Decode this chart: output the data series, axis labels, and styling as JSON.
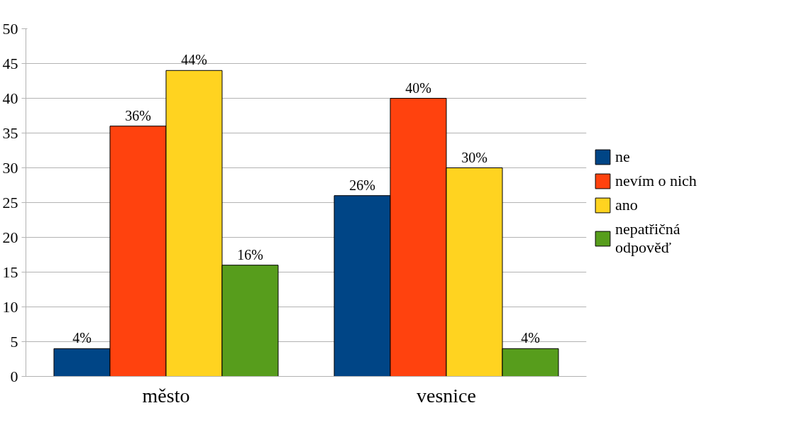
{
  "chart_data": {
    "type": "bar",
    "categories": [
      "město",
      "vesnice"
    ],
    "series": [
      {
        "name": "ne",
        "color": "#004586",
        "values": [
          4,
          26
        ],
        "value_labels": [
          "4%",
          "26%"
        ]
      },
      {
        "name": "nevím o nich",
        "color": "#ff420e",
        "values": [
          36,
          40
        ],
        "value_labels": [
          "36%",
          "40%"
        ]
      },
      {
        "name": "ano",
        "color": "#ffd320",
        "values": [
          44,
          30
        ],
        "value_labels": [
          "44%",
          "30%"
        ]
      },
      {
        "name": "nepatřičná odpověď",
        "color": "#579d1c",
        "values": [
          16,
          4
        ],
        "value_labels": [
          "16%",
          "4%"
        ]
      }
    ],
    "ylim": [
      0,
      50
    ],
    "yticks": [
      0,
      5,
      10,
      15,
      20,
      25,
      30,
      35,
      40,
      45,
      50
    ],
    "grid": "y",
    "legend": "right"
  }
}
